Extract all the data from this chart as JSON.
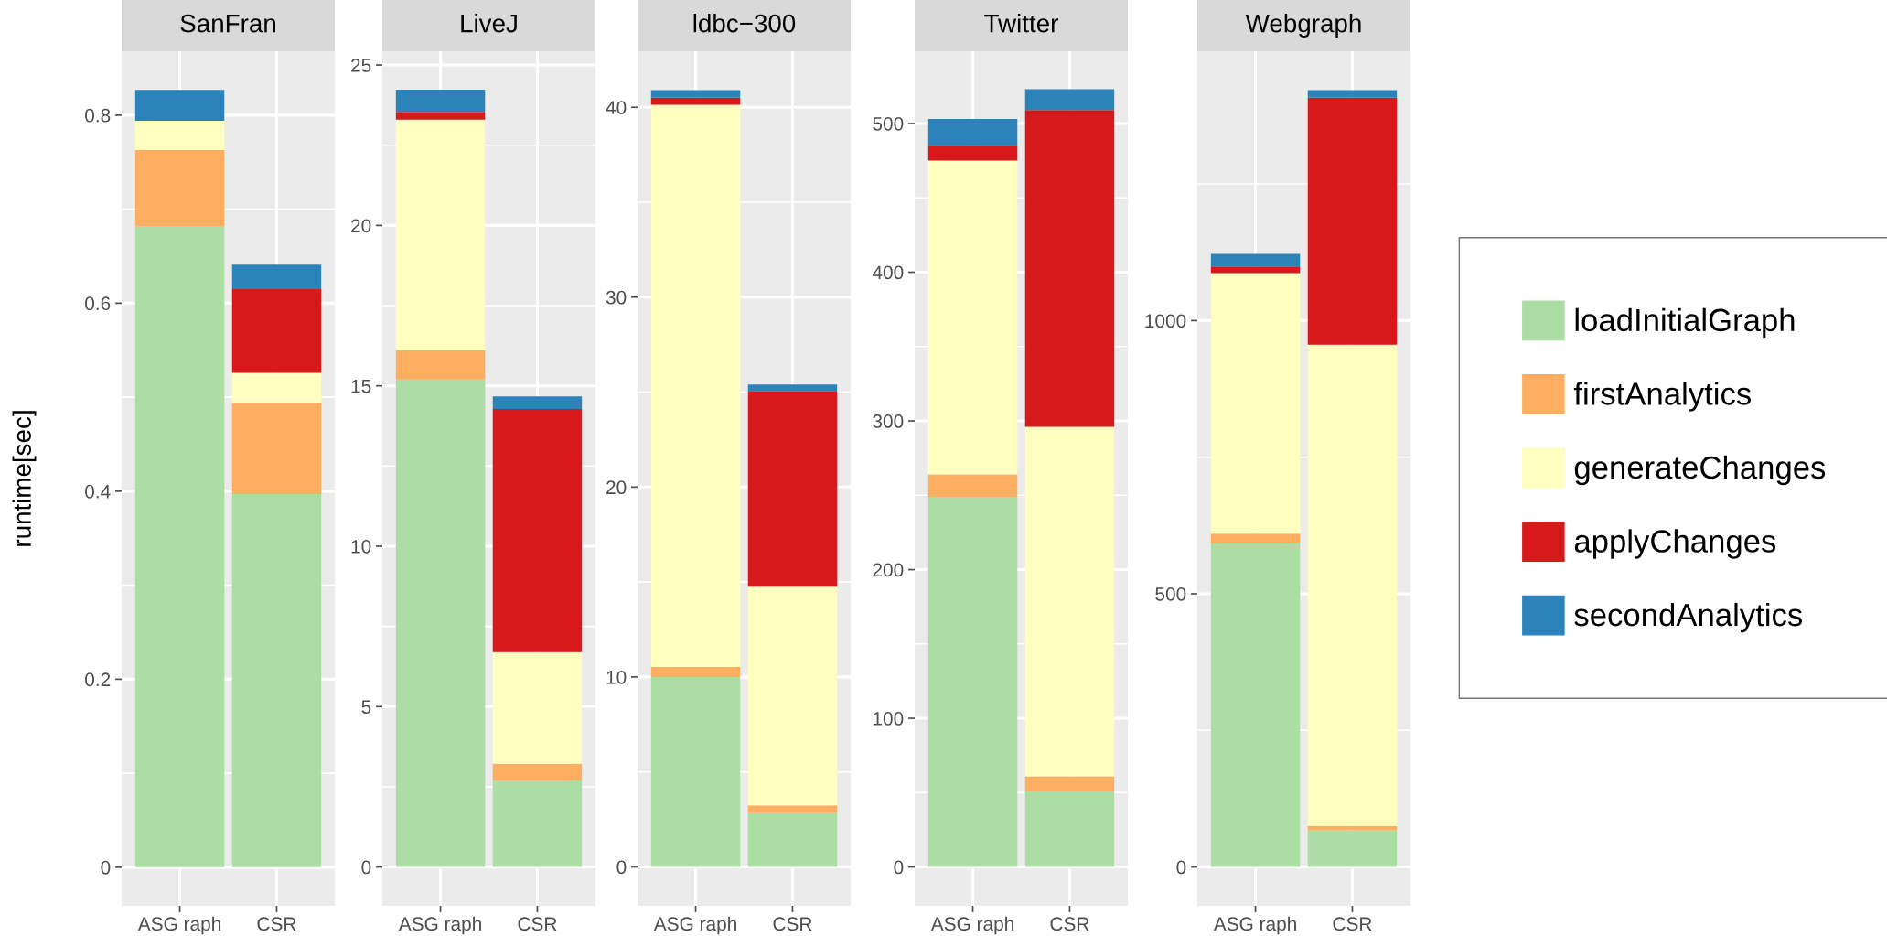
{
  "chart_data": [
    {
      "type": "bar",
      "stacked": true,
      "title": "SanFran",
      "ylabel": "runtime[sec]",
      "categories": [
        "ASG raph",
        "CSR"
      ],
      "ylim": [
        -0.041,
        0.868
      ],
      "yticks": [
        0,
        0.2,
        0.4,
        0.6,
        0.8
      ],
      "grid": true,
      "legend": false,
      "series": [
        {
          "color": "#abdda4",
          "values": [
            0.682,
            0.397
          ]
        },
        {
          "color": "#fdae61",
          "values": [
            0.081,
            0.097
          ]
        },
        {
          "color": "#ffffbf",
          "values": [
            0.031,
            0.032
          ]
        },
        {
          "color": "#d7191c",
          "values": [
            0,
            0.089
          ]
        },
        {
          "color": "#2b83ba",
          "values": [
            0.033,
            0.026
          ]
        }
      ]
    },
    {
      "type": "bar",
      "stacked": true,
      "title": "LiveJ",
      "categories": [
        "ASG raph",
        "CSR"
      ],
      "ylim": [
        -1.21,
        25.43
      ],
      "yticks": [
        0,
        5,
        10,
        15,
        20,
        25
      ],
      "grid": true,
      "legend": false,
      "series": [
        {
          "color": "#abdda4",
          "values": [
            15.2,
            2.7
          ]
        },
        {
          "color": "#fdae61",
          "values": [
            0.9,
            0.52
          ]
        },
        {
          "color": "#ffffbf",
          "values": [
            7.2,
            3.48
          ]
        },
        {
          "color": "#d7191c",
          "values": [
            0.24,
            7.58
          ]
        },
        {
          "color": "#2b83ba",
          "values": [
            0.69,
            0.39
          ]
        }
      ]
    },
    {
      "type": "bar",
      "stacked": true,
      "title": "ldbc−300",
      "categories": [
        "ASG raph",
        "CSR"
      ],
      "ylim": [
        -2.05,
        42.95
      ],
      "yticks": [
        0,
        10,
        20,
        30,
        40
      ],
      "grid": true,
      "legend": false,
      "series": [
        {
          "color": "#abdda4",
          "values": [
            10.0,
            2.83
          ]
        },
        {
          "color": "#fdae61",
          "values": [
            0.53,
            0.41
          ]
        },
        {
          "color": "#ffffbf",
          "values": [
            29.6,
            11.51
          ]
        },
        {
          "color": "#d7191c",
          "values": [
            0.37,
            10.31
          ]
        },
        {
          "color": "#2b83ba",
          "values": [
            0.4,
            0.34
          ]
        }
      ]
    },
    {
      "type": "bar",
      "stacked": true,
      "title": "Twitter",
      "categories": [
        "ASG raph",
        "CSR"
      ],
      "ylim": [
        -26.1,
        548.6
      ],
      "yticks": [
        0,
        100,
        200,
        300,
        400,
        500
      ],
      "grid": true,
      "legend": false,
      "series": [
        {
          "color": "#abdda4",
          "values": [
            249,
            51
          ]
        },
        {
          "color": "#fdae61",
          "values": [
            15,
            10
          ]
        },
        {
          "color": "#ffffbf",
          "values": [
            211,
            235
          ]
        },
        {
          "color": "#d7191c",
          "values": [
            10,
            213
          ]
        },
        {
          "color": "#2b83ba",
          "values": [
            18,
            14
          ]
        }
      ]
    },
    {
      "type": "bar",
      "stacked": true,
      "title": "Webgraph",
      "categories": [
        "ASG raph",
        "CSR"
      ],
      "ylim": [
        -71.1,
        1493
      ],
      "yticks": [
        0,
        500,
        1000
      ],
      "grid": true,
      "legend": "right",
      "series": [
        {
          "name": "loadInitialGraph",
          "color": "#abdda4",
          "values": [
            592,
            67
          ]
        },
        {
          "name": "firstAnalytics",
          "color": "#fdae61",
          "values": [
            18,
            8
          ]
        },
        {
          "name": "generateChanges",
          "color": "#ffffbf",
          "values": [
            477,
            881
          ]
        },
        {
          "name": "applyChanges",
          "color": "#d7191c",
          "values": [
            12,
            452
          ]
        },
        {
          "name": "secondAnalytics",
          "color": "#2b83ba",
          "values": [
            23,
            14
          ]
        }
      ]
    }
  ]
}
